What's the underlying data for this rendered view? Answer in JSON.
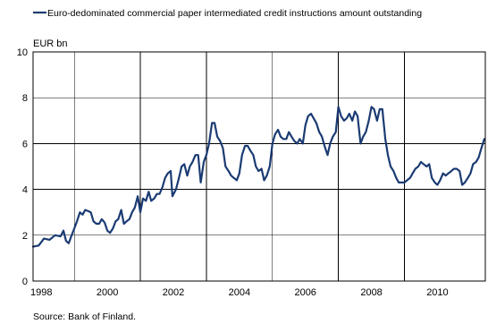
{
  "chart_data": {
    "type": "line",
    "legend": {
      "position": "top-left",
      "entries": [
        "Euro-dedominated commercial paper intermediated credit instructions amount outstanding"
      ]
    },
    "ylabel": "EUR bn",
    "ylim": [
      0,
      10
    ],
    "yticks": [
      "0",
      "2",
      "4",
      "6",
      "8",
      "10"
    ],
    "xlim": [
      1997.75,
      2011.45
    ],
    "xticks": [
      {
        "label": "1998",
        "x": 1998
      },
      {
        "label": "2000",
        "x": 2000
      },
      {
        "label": "2002",
        "x": 2002
      },
      {
        "label": "2004",
        "x": 2004
      },
      {
        "label": "2006",
        "x": 2006
      },
      {
        "label": "2008",
        "x": 2008
      },
      {
        "label": "2010",
        "x": 2010
      }
    ],
    "vertical_grid_years": [
      1999,
      2001,
      2003,
      2005,
      2007,
      2009
    ],
    "horizontal_grid": [
      2,
      4,
      6,
      8
    ],
    "source": "Source: Bank of Finland.",
    "color": "#1b3b73",
    "series": [
      {
        "name": "Euro-dedominated commercial paper intermediated credit instructions amount outstanding",
        "points": [
          [
            1997.75,
            1.5
          ],
          [
            1997.92,
            1.55
          ],
          [
            1998.08,
            1.85
          ],
          [
            1998.25,
            1.8
          ],
          [
            1998.42,
            2.0
          ],
          [
            1998.58,
            1.95
          ],
          [
            1998.67,
            2.2
          ],
          [
            1998.75,
            1.75
          ],
          [
            1998.83,
            1.65
          ],
          [
            1998.92,
            2.0
          ],
          [
            1999.0,
            2.3
          ],
          [
            1999.08,
            2.6
          ],
          [
            1999.17,
            3.0
          ],
          [
            1999.25,
            2.9
          ],
          [
            1999.33,
            3.1
          ],
          [
            1999.42,
            3.05
          ],
          [
            1999.5,
            3.0
          ],
          [
            1999.58,
            2.6
          ],
          [
            1999.67,
            2.5
          ],
          [
            1999.75,
            2.5
          ],
          [
            1999.83,
            2.7
          ],
          [
            1999.92,
            2.55
          ],
          [
            2000.0,
            2.2
          ],
          [
            2000.08,
            2.1
          ],
          [
            2000.17,
            2.3
          ],
          [
            2000.25,
            2.6
          ],
          [
            2000.33,
            2.7
          ],
          [
            2000.42,
            3.1
          ],
          [
            2000.5,
            2.5
          ],
          [
            2000.58,
            2.6
          ],
          [
            2000.67,
            2.7
          ],
          [
            2000.75,
            3.0
          ],
          [
            2000.83,
            3.2
          ],
          [
            2000.92,
            3.7
          ],
          [
            2001.0,
            3.0
          ],
          [
            2001.08,
            3.6
          ],
          [
            2001.17,
            3.5
          ],
          [
            2001.25,
            3.9
          ],
          [
            2001.33,
            3.5
          ],
          [
            2001.42,
            3.6
          ],
          [
            2001.5,
            3.8
          ],
          [
            2001.58,
            3.8
          ],
          [
            2001.67,
            4.1
          ],
          [
            2001.75,
            4.5
          ],
          [
            2001.83,
            4.7
          ],
          [
            2001.92,
            4.8
          ],
          [
            2001.97,
            3.7
          ],
          [
            2002.08,
            4.0
          ],
          [
            2002.17,
            4.5
          ],
          [
            2002.25,
            5.0
          ],
          [
            2002.33,
            5.1
          ],
          [
            2002.42,
            4.6
          ],
          [
            2002.5,
            5.0
          ],
          [
            2002.58,
            5.2
          ],
          [
            2002.67,
            5.5
          ],
          [
            2002.75,
            5.5
          ],
          [
            2002.83,
            4.3
          ],
          [
            2002.92,
            5.2
          ],
          [
            2003.0,
            5.5
          ],
          [
            2003.08,
            6.0
          ],
          [
            2003.17,
            6.9
          ],
          [
            2003.25,
            6.9
          ],
          [
            2003.33,
            6.3
          ],
          [
            2003.42,
            6.1
          ],
          [
            2003.5,
            5.8
          ],
          [
            2003.58,
            5.0
          ],
          [
            2003.67,
            4.8
          ],
          [
            2003.75,
            4.6
          ],
          [
            2003.83,
            4.5
          ],
          [
            2003.92,
            4.4
          ],
          [
            2004.0,
            4.7
          ],
          [
            2004.08,
            5.5
          ],
          [
            2004.17,
            5.9
          ],
          [
            2004.25,
            5.9
          ],
          [
            2004.33,
            5.7
          ],
          [
            2004.42,
            5.5
          ],
          [
            2004.5,
            5.0
          ],
          [
            2004.58,
            4.8
          ],
          [
            2004.67,
            4.9
          ],
          [
            2004.75,
            4.4
          ],
          [
            2004.83,
            4.6
          ],
          [
            2004.92,
            5.0
          ],
          [
            2005.0,
            6.0
          ],
          [
            2005.08,
            6.4
          ],
          [
            2005.17,
            6.6
          ],
          [
            2005.25,
            6.3
          ],
          [
            2005.33,
            6.2
          ],
          [
            2005.42,
            6.2
          ],
          [
            2005.5,
            6.5
          ],
          [
            2005.58,
            6.3
          ],
          [
            2005.67,
            6.1
          ],
          [
            2005.75,
            6.0
          ],
          [
            2005.83,
            6.2
          ],
          [
            2005.92,
            6.0
          ],
          [
            2006.0,
            6.8
          ],
          [
            2006.08,
            7.2
          ],
          [
            2006.17,
            7.3
          ],
          [
            2006.25,
            7.1
          ],
          [
            2006.33,
            6.9
          ],
          [
            2006.42,
            6.5
          ],
          [
            2006.5,
            6.3
          ],
          [
            2006.58,
            5.9
          ],
          [
            2006.67,
            5.5
          ],
          [
            2006.75,
            6.0
          ],
          [
            2006.83,
            6.3
          ],
          [
            2006.92,
            6.5
          ],
          [
            2007.0,
            7.6
          ],
          [
            2007.08,
            7.2
          ],
          [
            2007.17,
            7.0
          ],
          [
            2007.25,
            7.1
          ],
          [
            2007.33,
            7.3
          ],
          [
            2007.42,
            7.0
          ],
          [
            2007.5,
            7.4
          ],
          [
            2007.58,
            7.2
          ],
          [
            2007.67,
            6.0
          ],
          [
            2007.75,
            6.3
          ],
          [
            2007.83,
            6.5
          ],
          [
            2007.92,
            7.0
          ],
          [
            2008.0,
            7.6
          ],
          [
            2008.08,
            7.5
          ],
          [
            2008.17,
            7.0
          ],
          [
            2008.25,
            7.5
          ],
          [
            2008.33,
            7.5
          ],
          [
            2008.42,
            6.2
          ],
          [
            2008.5,
            5.5
          ],
          [
            2008.58,
            5.0
          ],
          [
            2008.67,
            4.8
          ],
          [
            2008.75,
            4.5
          ],
          [
            2008.83,
            4.3
          ],
          [
            2008.92,
            4.3
          ],
          [
            2009.0,
            4.3
          ],
          [
            2009.08,
            4.4
          ],
          [
            2009.17,
            4.5
          ],
          [
            2009.25,
            4.7
          ],
          [
            2009.33,
            4.9
          ],
          [
            2009.42,
            5.0
          ],
          [
            2009.5,
            5.2
          ],
          [
            2009.58,
            5.1
          ],
          [
            2009.67,
            5.0
          ],
          [
            2009.75,
            5.1
          ],
          [
            2009.83,
            4.5
          ],
          [
            2009.92,
            4.3
          ],
          [
            2010.0,
            4.2
          ],
          [
            2010.08,
            4.4
          ],
          [
            2010.17,
            4.7
          ],
          [
            2010.25,
            4.6
          ],
          [
            2010.33,
            4.7
          ],
          [
            2010.42,
            4.8
          ],
          [
            2010.5,
            4.9
          ],
          [
            2010.58,
            4.9
          ],
          [
            2010.67,
            4.8
          ],
          [
            2010.75,
            4.2
          ],
          [
            2010.83,
            4.3
          ],
          [
            2010.92,
            4.5
          ],
          [
            2011.0,
            4.7
          ],
          [
            2011.08,
            5.1
          ],
          [
            2011.17,
            5.2
          ],
          [
            2011.25,
            5.4
          ],
          [
            2011.33,
            5.8
          ],
          [
            2011.42,
            6.2
          ]
        ]
      }
    ]
  }
}
